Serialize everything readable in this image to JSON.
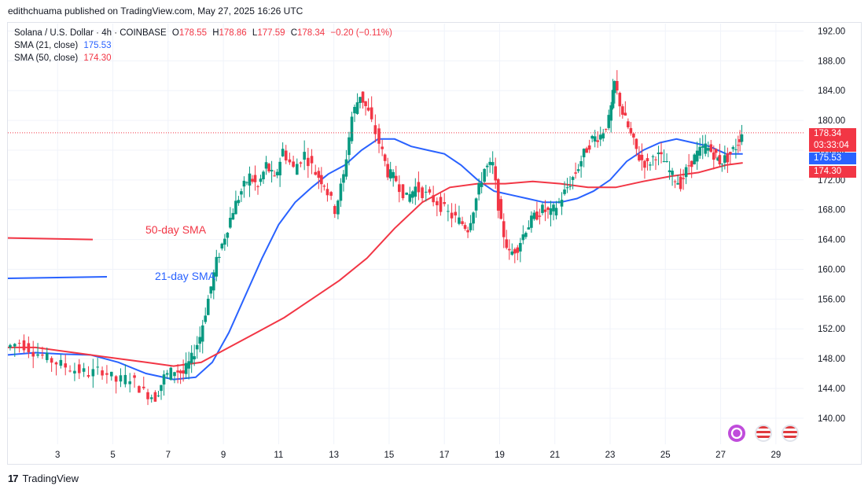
{
  "credit": "edithchuama published on TradingView.com, May 27, 2025 16:26 UTC",
  "legend": {
    "symbol": "Solana / U.S. Dollar · 4h · COINBASE",
    "o_label": "O",
    "o": "178.55",
    "h_label": "H",
    "h": "178.86",
    "l_label": "L",
    "l": "177.59",
    "c_label": "C",
    "c": "178.34",
    "change": "−0.20 (−0.11%)",
    "sma21_label": "SMA (21, close)",
    "sma21_value": "175.53",
    "sma50_label": "SMA (50, close)",
    "sma50_value": "174.30"
  },
  "badges": {
    "price": "178.34",
    "countdown": "03:33:04",
    "sma21": "175.53",
    "sma50": "174.30"
  },
  "footer": {
    "brand": "TradingView"
  },
  "colors": {
    "up": "#089981",
    "down": "#f23645",
    "sma21": "#2962ff",
    "sma50": "#f23645"
  },
  "chart_data": {
    "type": "candlestick",
    "title": "",
    "x_tick_labels": [
      "3",
      "5",
      "7",
      "9",
      "11",
      "13",
      "15",
      "17",
      "19",
      "21",
      "23",
      "25",
      "27",
      "29"
    ],
    "y_tick_labels": [
      "140.00",
      "144.00",
      "148.00",
      "152.00",
      "156.00",
      "160.00",
      "164.00",
      "168.00",
      "172.00",
      "176.00",
      "180.00",
      "184.00",
      "188.00",
      "192.00"
    ],
    "ylim": [
      136.5,
      193
    ],
    "xlim": [
      1.2,
      30.0
    ],
    "annotations": [
      {
        "text": "50-day SMA",
        "color": "#f23645"
      },
      {
        "text": "21-day SMA",
        "color": "#2962ff"
      }
    ],
    "legend_lines": {
      "sma50_level": 164.0,
      "sma21_level": 159.0
    },
    "last_price": 178.34,
    "close_series": [
      [
        1.2,
        149.5
      ],
      [
        1.7,
        150.2
      ],
      [
        2.2,
        149.0
      ],
      [
        2.7,
        148.0
      ],
      [
        3.2,
        147.2
      ],
      [
        3.7,
        146.5
      ],
      [
        4.2,
        146.0
      ],
      [
        4.7,
        146.5
      ],
      [
        5.2,
        145.0
      ],
      [
        5.7,
        145.5
      ],
      [
        6.2,
        143.5
      ],
      [
        6.6,
        142.8
      ],
      [
        6.9,
        145.5
      ],
      [
        7.3,
        146.5
      ],
      [
        7.6,
        146.0
      ],
      [
        7.9,
        148.0
      ],
      [
        8.2,
        151.0
      ],
      [
        8.5,
        156.0
      ],
      [
        8.8,
        161.0
      ],
      [
        9.1,
        164.5
      ],
      [
        9.4,
        168.0
      ],
      [
        9.7,
        170.5
      ],
      [
        10.0,
        172.5
      ],
      [
        10.3,
        171.0
      ],
      [
        10.6,
        174.0
      ],
      [
        10.9,
        172.0
      ],
      [
        11.2,
        176.0
      ],
      [
        11.6,
        173.5
      ],
      [
        12.0,
        175.5
      ],
      [
        12.4,
        173.0
      ],
      [
        12.7,
        171.5
      ],
      [
        13.1,
        168.0
      ],
      [
        13.4,
        172.5
      ],
      [
        13.7,
        180.5
      ],
      [
        14.0,
        183.5
      ],
      [
        14.3,
        181.0
      ],
      [
        14.7,
        177.0
      ],
      [
        15.0,
        173.0
      ],
      [
        15.3,
        172.0
      ],
      [
        15.7,
        169.5
      ],
      [
        16.0,
        171.0
      ],
      [
        16.4,
        170.0
      ],
      [
        16.8,
        169.0
      ],
      [
        17.2,
        167.5
      ],
      [
        17.6,
        166.5
      ],
      [
        17.9,
        165.5
      ],
      [
        18.2,
        169.5
      ],
      [
        18.5,
        173.5
      ],
      [
        18.8,
        174.0
      ],
      [
        19.1,
        166.0
      ],
      [
        19.4,
        162.0
      ],
      [
        19.7,
        163.0
      ],
      [
        20.0,
        165.5
      ],
      [
        20.3,
        167.0
      ],
      [
        20.6,
        168.0
      ],
      [
        20.9,
        167.5
      ],
      [
        21.2,
        169.0
      ],
      [
        21.5,
        171.0
      ],
      [
        21.8,
        173.0
      ],
      [
        22.1,
        175.5
      ],
      [
        22.4,
        177.5
      ],
      [
        22.7,
        178.0
      ],
      [
        23.0,
        180.0
      ],
      [
        23.2,
        185.0
      ],
      [
        23.5,
        181.0
      ],
      [
        23.8,
        178.0
      ],
      [
        24.1,
        175.0
      ],
      [
        24.4,
        174.0
      ],
      [
        24.7,
        175.5
      ],
      [
        25.0,
        174.5
      ],
      [
        25.3,
        172.5
      ],
      [
        25.6,
        171.5
      ],
      [
        25.9,
        174.0
      ],
      [
        26.2,
        175.5
      ],
      [
        26.5,
        176.5
      ],
      [
        26.8,
        175.5
      ],
      [
        27.0,
        174.5
      ],
      [
        27.3,
        175.0
      ],
      [
        27.6,
        176.5
      ],
      [
        27.8,
        178.3
      ]
    ],
    "series": [
      {
        "name": "SMA (21, close)",
        "color": "#2962ff",
        "points": [
          [
            1.2,
            148.5
          ],
          [
            2.2,
            148.8
          ],
          [
            3.2,
            148.6
          ],
          [
            4.2,
            148.5
          ],
          [
            5.2,
            147.5
          ],
          [
            6.2,
            146.0
          ],
          [
            7.2,
            145.2
          ],
          [
            8.0,
            145.5
          ],
          [
            8.6,
            147.5
          ],
          [
            9.2,
            151.5
          ],
          [
            9.8,
            156.5
          ],
          [
            10.4,
            161.5
          ],
          [
            11.0,
            166.0
          ],
          [
            11.6,
            169.0
          ],
          [
            12.2,
            171.0
          ],
          [
            12.8,
            172.8
          ],
          [
            13.4,
            174.0
          ],
          [
            14.0,
            176.0
          ],
          [
            14.6,
            177.5
          ],
          [
            15.2,
            177.5
          ],
          [
            15.8,
            176.5
          ],
          [
            16.4,
            176.0
          ],
          [
            17.0,
            175.5
          ],
          [
            17.6,
            174.0
          ],
          [
            18.2,
            172.0
          ],
          [
            18.8,
            170.5
          ],
          [
            19.4,
            170.0
          ],
          [
            20.0,
            169.5
          ],
          [
            20.6,
            169.0
          ],
          [
            21.2,
            169.0
          ],
          [
            21.8,
            169.5
          ],
          [
            22.4,
            170.5
          ],
          [
            23.0,
            172.0
          ],
          [
            23.6,
            174.5
          ],
          [
            24.2,
            176.0
          ],
          [
            24.8,
            177.0
          ],
          [
            25.4,
            177.5
          ],
          [
            26.0,
            177.0
          ],
          [
            26.6,
            176.5
          ],
          [
            27.2,
            175.5
          ],
          [
            27.8,
            175.5
          ]
        ]
      },
      {
        "name": "SMA (50, close)",
        "color": "#f23645",
        "points": [
          [
            1.2,
            149.5
          ],
          [
            2.2,
            149.5
          ],
          [
            3.2,
            149.0
          ],
          [
            4.2,
            148.5
          ],
          [
            5.2,
            148.0
          ],
          [
            6.2,
            147.5
          ],
          [
            7.2,
            147.0
          ],
          [
            8.2,
            147.5
          ],
          [
            9.2,
            149.5
          ],
          [
            10.2,
            151.5
          ],
          [
            11.2,
            153.5
          ],
          [
            12.2,
            156.0
          ],
          [
            13.2,
            158.5
          ],
          [
            14.2,
            161.5
          ],
          [
            15.2,
            165.5
          ],
          [
            16.2,
            169.0
          ],
          [
            17.2,
            171.0
          ],
          [
            18.2,
            171.5
          ],
          [
            19.2,
            171.5
          ],
          [
            20.2,
            171.8
          ],
          [
            21.2,
            171.5
          ],
          [
            22.2,
            171.0
          ],
          [
            23.2,
            171.0
          ],
          [
            24.2,
            171.8
          ],
          [
            25.2,
            172.5
          ],
          [
            26.2,
            173.0
          ],
          [
            27.2,
            174.0
          ],
          [
            27.8,
            174.3
          ]
        ]
      }
    ]
  }
}
